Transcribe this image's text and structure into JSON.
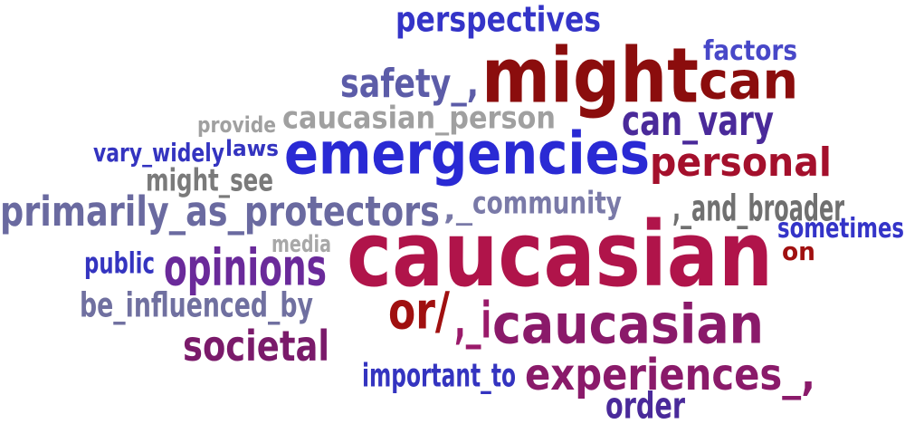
{
  "words": [
    {
      "text": "perspectives",
      "color": "#3434c8"
    },
    {
      "text": "might",
      "color": "#8b0d0d"
    },
    {
      "text": "factors",
      "color": "#4848c8"
    },
    {
      "text": "can",
      "color": "#8b0d0d"
    },
    {
      "text": "safety_,",
      "color": "#5c5ca8"
    },
    {
      "text": "provide",
      "color": "#a0a0a0"
    },
    {
      "text": "caucasian_person",
      "color": "#a0a0a0"
    },
    {
      "text": "can_vary",
      "color": "#4a2a9a"
    },
    {
      "text": "vary_widely",
      "color": "#3434c0"
    },
    {
      "text": "laws",
      "color": "#3434c0"
    },
    {
      "text": "emergencies",
      "color": "#2a2ad4"
    },
    {
      "text": "personal",
      "color": "#a4102c"
    },
    {
      "text": "might_see",
      "color": "#7a7a7a"
    },
    {
      "text": "primarily_as_protectors",
      "color": "#6a6aa0"
    },
    {
      "text": ",_",
      "color": "#7a7aa8"
    },
    {
      "text": "community",
      "color": "#7a7aa8"
    },
    {
      "text": ",_and_broader",
      "color": "#707070"
    },
    {
      "text": "sometimes",
      "color": "#3434c8"
    },
    {
      "text": "media",
      "color": "#a8a8a8"
    },
    {
      "text": "caucasian",
      "color": "#b0144a"
    },
    {
      "text": "on",
      "color": "#a01010"
    },
    {
      "text": "public",
      "color": "#3434c0"
    },
    {
      "text": "opinions",
      "color": "#6a2a9a"
    },
    {
      "text": "be_influenced_by",
      "color": "#7070a0"
    },
    {
      "text": "or/",
      "color": "#a01010"
    },
    {
      "text": ",_i",
      "color": "#9a1a6a"
    },
    {
      "text": "caucasian",
      "color": "#8a1a6a"
    },
    {
      "text": "societal",
      "color": "#7a1a6a"
    },
    {
      "text": "important_to",
      "color": "#3434c0"
    },
    {
      "text": "experiences_,",
      "color": "#8a1a6a"
    },
    {
      "text": "order",
      "color": "#4a2a9a"
    }
  ]
}
